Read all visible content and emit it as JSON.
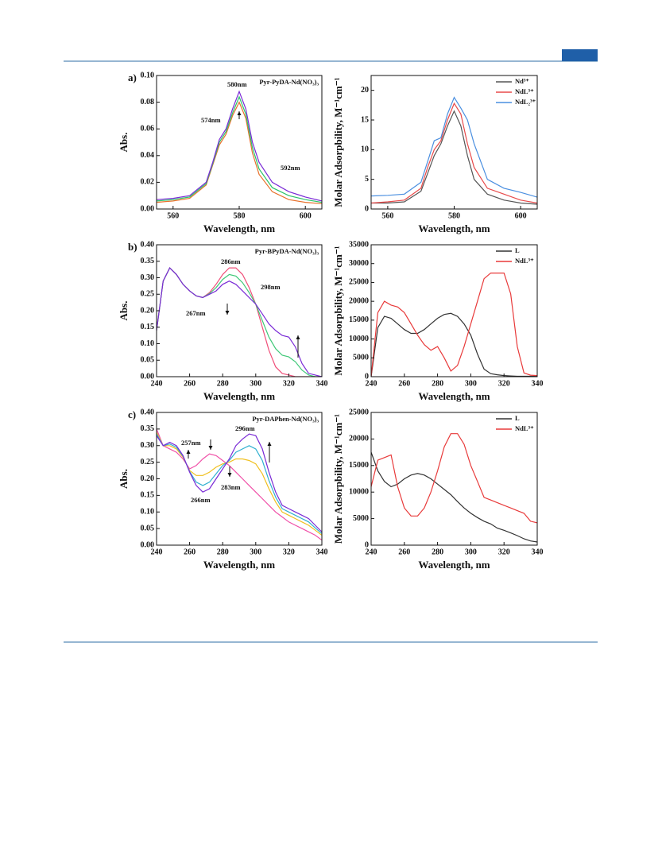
{
  "chart_data": [
    {
      "type": "line",
      "panel_label": "a)",
      "title": "Pyr-PyDA-Nd(NO₃)₃",
      "xlabel": "Wavelength, nm",
      "ylabel": "Abs.",
      "x": [
        555,
        560,
        565,
        570,
        572,
        574,
        576,
        578,
        580,
        582,
        584,
        586,
        590,
        595,
        600,
        605
      ],
      "xlim": [
        555,
        605
      ],
      "xticks": [
        560,
        580,
        600
      ],
      "ylim": [
        0,
        0.1
      ],
      "yticks": [
        {
          "value": 0,
          "label": "0.00"
        },
        {
          "value": 0.02,
          "label": "0.02"
        },
        {
          "value": 0.04,
          "label": "0.04"
        },
        {
          "value": 0.06,
          "label": "0.06"
        },
        {
          "value": 0.08,
          "label": "0.08"
        },
        {
          "value": 0.1,
          "label": "0.10"
        }
      ],
      "series": [
        {
          "color": "#e8702a",
          "values": [
            0.005,
            0.006,
            0.008,
            0.018,
            0.033,
            0.048,
            0.056,
            0.07,
            0.08,
            0.068,
            0.042,
            0.026,
            0.013,
            0.007,
            0.005,
            0.004
          ]
        },
        {
          "color": "#2cc46a",
          "values": [
            0.006,
            0.007,
            0.009,
            0.019,
            0.034,
            0.05,
            0.058,
            0.072,
            0.084,
            0.071,
            0.046,
            0.03,
            0.016,
            0.01,
            0.007,
            0.005
          ]
        },
        {
          "color": "#7a2bd6",
          "values": [
            0.007,
            0.008,
            0.01,
            0.02,
            0.035,
            0.052,
            0.06,
            0.075,
            0.088,
            0.075,
            0.05,
            0.035,
            0.02,
            0.013,
            0.009,
            0.006
          ]
        }
      ],
      "annotations": [
        "580nm",
        "574nm",
        "592nm"
      ]
    },
    {
      "type": "line",
      "xlabel": "Wavelength, nm",
      "ylabel": "Molar Adsorpbility, M⁻¹cm⁻¹",
      "x": [
        555,
        560,
        565,
        570,
        572,
        574,
        576,
        578,
        580,
        582,
        584,
        586,
        590,
        595,
        600,
        605
      ],
      "xlim": [
        555,
        605
      ],
      "xticks": [
        560,
        580,
        600
      ],
      "ylim": [
        0,
        22.5
      ],
      "yticks": [
        0,
        5,
        10,
        15,
        20
      ],
      "legend": "upper right",
      "series": [
        {
          "name": "Nd³⁺",
          "color": "#555555",
          "values": [
            1,
            1,
            1.2,
            3,
            6,
            9,
            11,
            14,
            16.5,
            14,
            9,
            5,
            2.5,
            1.5,
            1,
            0.8
          ]
        },
        {
          "name": "NdL³⁺",
          "color": "#e84a4a",
          "values": [
            1,
            1.2,
            1.5,
            3.5,
            7,
            10,
            11.5,
            15,
            17.8,
            16,
            11,
            7,
            3.5,
            2.5,
            1.5,
            1
          ]
        },
        {
          "name": "NdL₂³⁺",
          "color": "#4a8fe0",
          "values": [
            2.2,
            2.3,
            2.5,
            4.5,
            8,
            11.5,
            12,
            16,
            18.8,
            17,
            15,
            11,
            5,
            3.5,
            2.8,
            2
          ]
        }
      ]
    },
    {
      "type": "line",
      "panel_label": "b)",
      "title": "Pyr-BPyDA-Nd(NO₃)₃",
      "xlabel": "Wavelength, nm",
      "ylabel": "Abs.",
      "x": [
        240,
        244,
        248,
        252,
        256,
        260,
        264,
        268,
        272,
        276,
        280,
        284,
        288,
        292,
        296,
        300,
        304,
        308,
        312,
        316,
        320,
        324,
        328,
        332,
        336,
        340
      ],
      "xlim": [
        240,
        340
      ],
      "xticks": [
        240,
        260,
        280,
        300,
        320,
        340
      ],
      "ylim": [
        0,
        0.4
      ],
      "yticks": [
        {
          "value": 0,
          "label": "0.00"
        },
        {
          "value": 0.05,
          "label": "0.05"
        },
        {
          "value": 0.1,
          "label": "0.10"
        },
        {
          "value": 0.15,
          "label": "0.15"
        },
        {
          "value": 0.2,
          "label": "0.20"
        },
        {
          "value": 0.25,
          "label": "0.25"
        },
        {
          "value": 0.3,
          "label": "0.30"
        },
        {
          "value": 0.35,
          "label": "0.35"
        },
        {
          "value": 0.4,
          "label": "0.40"
        }
      ],
      "series": [
        {
          "color": "#f0507a",
          "values": [
            0.14,
            0.29,
            0.33,
            0.31,
            0.28,
            0.26,
            0.245,
            0.24,
            0.255,
            0.28,
            0.31,
            0.33,
            0.33,
            0.31,
            0.27,
            0.22,
            0.15,
            0.08,
            0.03,
            0.01,
            0.005,
            0,
            0,
            0,
            0,
            0
          ]
        },
        {
          "color": "#40c878",
          "values": [
            0.14,
            0.29,
            0.33,
            0.31,
            0.28,
            0.26,
            0.245,
            0.24,
            0.252,
            0.27,
            0.295,
            0.31,
            0.305,
            0.285,
            0.255,
            0.22,
            0.17,
            0.12,
            0.085,
            0.065,
            0.06,
            0.045,
            0.02,
            0.005,
            0,
            0
          ]
        },
        {
          "color": "#7a2bd6",
          "values": [
            0.14,
            0.29,
            0.33,
            0.31,
            0.28,
            0.26,
            0.245,
            0.24,
            0.25,
            0.26,
            0.28,
            0.29,
            0.28,
            0.26,
            0.24,
            0.22,
            0.19,
            0.16,
            0.14,
            0.125,
            0.12,
            0.09,
            0.04,
            0.01,
            0.005,
            0
          ]
        }
      ],
      "annotations": [
        "286nm",
        "267nm",
        "298nm"
      ]
    },
    {
      "type": "line",
      "xlabel": "Wavelength, nm",
      "ylabel": "Molar Adsorpbility, M⁻¹cm⁻¹",
      "x": [
        240,
        244,
        248,
        252,
        256,
        260,
        264,
        268,
        272,
        276,
        280,
        284,
        288,
        292,
        296,
        300,
        304,
        308,
        312,
        316,
        320,
        324,
        328,
        332,
        336,
        340
      ],
      "xlim": [
        240,
        340
      ],
      "xticks": [
        240,
        260,
        280,
        300,
        320,
        340
      ],
      "ylim": [
        0,
        35000
      ],
      "yticks": [
        0,
        5000,
        10000,
        15000,
        20000,
        25000,
        30000,
        35000
      ],
      "legend": "upper right",
      "series": [
        {
          "name": "L",
          "color": "#333333",
          "values": [
            0,
            13000,
            16000,
            15500,
            14000,
            12500,
            11500,
            11500,
            12500,
            14000,
            15500,
            16500,
            16800,
            16000,
            14000,
            11000,
            6000,
            2000,
            800,
            500,
            300,
            200,
            100,
            100,
            100,
            100
          ]
        },
        {
          "name": "NdL³⁺",
          "color": "#e83a3a",
          "values": [
            0,
            17000,
            20000,
            19000,
            18500,
            17000,
            14000,
            11000,
            8500,
            7000,
            8000,
            5000,
            1500,
            3000,
            8000,
            14000,
            20000,
            26000,
            27500,
            27500,
            27500,
            22000,
            8000,
            1000,
            400,
            300
          ]
        }
      ]
    },
    {
      "type": "line",
      "panel_label": "c)",
      "title": "Pyr-DAPhen-Nd(NO₃)₃",
      "xlabel": "Wavelength, nm",
      "ylabel": "Abs.",
      "x": [
        240,
        244,
        248,
        252,
        256,
        260,
        264,
        268,
        272,
        276,
        280,
        284,
        288,
        292,
        296,
        300,
        304,
        308,
        312,
        316,
        320,
        324,
        328,
        332,
        336,
        340
      ],
      "xlim": [
        240,
        340
      ],
      "xticks": [
        240,
        260,
        280,
        300,
        320,
        340
      ],
      "ylim": [
        0,
        0.4
      ],
      "yticks": [
        {
          "value": 0,
          "label": "0.00"
        },
        {
          "value": 0.05,
          "label": "0.05"
        },
        {
          "value": 0.1,
          "label": "0.10"
        },
        {
          "value": 0.15,
          "label": "0.15"
        },
        {
          "value": 0.2,
          "label": "0.20"
        },
        {
          "value": 0.25,
          "label": "0.25"
        },
        {
          "value": 0.3,
          "label": "0.30"
        },
        {
          "value": 0.35,
          "label": "0.35"
        },
        {
          "value": 0.4,
          "label": "0.40"
        }
      ],
      "series": [
        {
          "color": "#f050a8",
          "values": [
            0.35,
            0.3,
            0.29,
            0.28,
            0.26,
            0.23,
            0.24,
            0.26,
            0.275,
            0.27,
            0.255,
            0.24,
            0.22,
            0.2,
            0.18,
            0.16,
            0.14,
            0.12,
            0.1,
            0.085,
            0.07,
            0.06,
            0.05,
            0.04,
            0.03,
            0.015
          ]
        },
        {
          "color": "#f0c020",
          "values": [
            0.34,
            0.3,
            0.3,
            0.29,
            0.265,
            0.225,
            0.21,
            0.21,
            0.22,
            0.235,
            0.245,
            0.25,
            0.26,
            0.26,
            0.255,
            0.245,
            0.215,
            0.17,
            0.13,
            0.1,
            0.09,
            0.08,
            0.07,
            0.06,
            0.045,
            0.03
          ]
        },
        {
          "color": "#30b0d0",
          "values": [
            0.335,
            0.3,
            0.305,
            0.295,
            0.268,
            0.222,
            0.19,
            0.18,
            0.19,
            0.215,
            0.24,
            0.255,
            0.28,
            0.29,
            0.3,
            0.29,
            0.255,
            0.195,
            0.145,
            0.11,
            0.1,
            0.09,
            0.08,
            0.07,
            0.052,
            0.035
          ]
        },
        {
          "color": "#7a2bd6",
          "values": [
            0.33,
            0.3,
            0.31,
            0.3,
            0.27,
            0.22,
            0.18,
            0.16,
            0.17,
            0.2,
            0.23,
            0.26,
            0.3,
            0.32,
            0.335,
            0.33,
            0.29,
            0.22,
            0.16,
            0.12,
            0.11,
            0.1,
            0.09,
            0.08,
            0.06,
            0.04
          ]
        }
      ],
      "annotations": [
        "257nm",
        "266nm",
        "283nm",
        "296nm"
      ]
    },
    {
      "type": "line",
      "xlabel": "Wavelength, nm",
      "ylabel": "Molar Adsorpbility, M⁻¹cm⁻¹",
      "x": [
        240,
        244,
        248,
        252,
        256,
        260,
        264,
        268,
        272,
        276,
        280,
        284,
        288,
        292,
        296,
        300,
        304,
        308,
        312,
        316,
        320,
        324,
        328,
        332,
        336,
        340
      ],
      "xlim": [
        240,
        340
      ],
      "xticks": [
        240,
        260,
        280,
        300,
        320,
        340
      ],
      "ylim": [
        0,
        25000
      ],
      "yticks": [
        0,
        5000,
        10000,
        15000,
        20000,
        25000
      ],
      "legend": "upper right",
      "series": [
        {
          "name": "L",
          "color": "#333333",
          "values": [
            17500,
            14000,
            12000,
            11000,
            11500,
            12500,
            13200,
            13500,
            13200,
            12500,
            11500,
            10500,
            9500,
            8200,
            7000,
            6000,
            5200,
            4500,
            4000,
            3200,
            2800,
            2300,
            1800,
            1200,
            800,
            600
          ]
        },
        {
          "name": "NdL³⁺",
          "color": "#e83a3a",
          "values": [
            11000,
            16000,
            16500,
            17000,
            11000,
            7000,
            5500,
            5500,
            7000,
            10000,
            14000,
            18500,
            21000,
            21000,
            19000,
            15000,
            12000,
            9000,
            8500,
            8000,
            7500,
            7000,
            6500,
            6000,
            4500,
            4200
          ]
        }
      ]
    }
  ]
}
